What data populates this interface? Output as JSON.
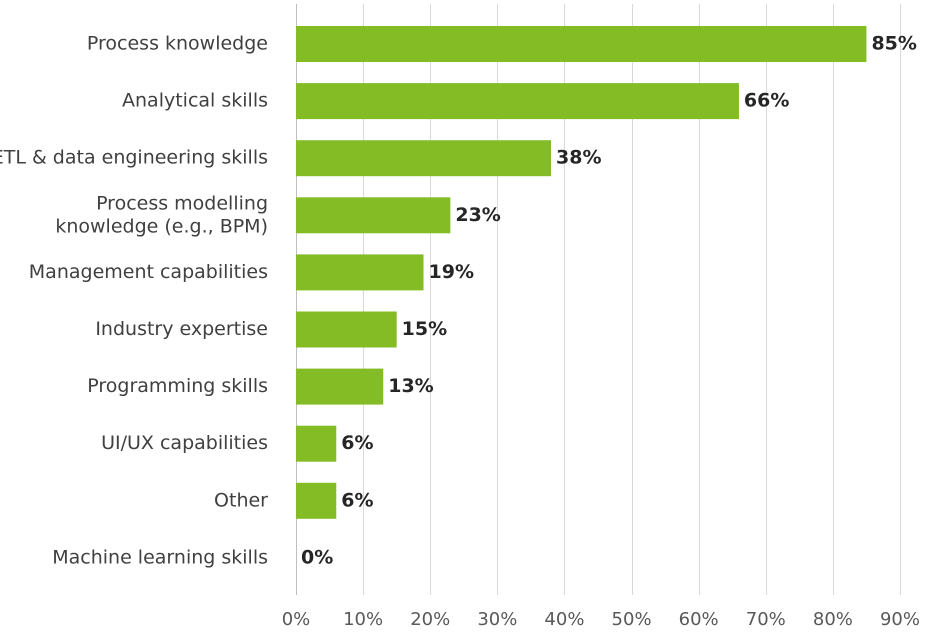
{
  "chart_data": {
    "type": "bar",
    "orientation": "horizontal",
    "title": "",
    "xlabel": "",
    "ylabel": "",
    "categories": [
      [
        "Process knowledge"
      ],
      [
        "Analytical skills"
      ],
      [
        "ETL & data engineering skills"
      ],
      [
        "Process modelling",
        "knowledge (e.g., BPM)"
      ],
      [
        "Management capabilities"
      ],
      [
        "Industry expertise"
      ],
      [
        "Programming skills"
      ],
      [
        "UI/UX capabilities"
      ],
      [
        "Other"
      ],
      [
        "Machine learning skills"
      ]
    ],
    "values": [
      85,
      66,
      38,
      23,
      19,
      15,
      13,
      6,
      6,
      0
    ],
    "value_labels": [
      "85%",
      "66%",
      "38%",
      "23%",
      "19%",
      "15%",
      "13%",
      "6%",
      "6%",
      "0%"
    ],
    "xlim": [
      0,
      90
    ],
    "xticks": [
      0,
      10,
      20,
      30,
      40,
      50,
      60,
      70,
      80,
      90
    ],
    "xtick_labels": [
      "0%",
      "10%",
      "20%",
      "30%",
      "40%",
      "50%",
      "60%",
      "70%",
      "80%",
      "90%"
    ],
    "grid": "vertical",
    "legend": "none",
    "colors": {
      "bar": "#84bc26",
      "grid": "#d9d9d9"
    }
  }
}
